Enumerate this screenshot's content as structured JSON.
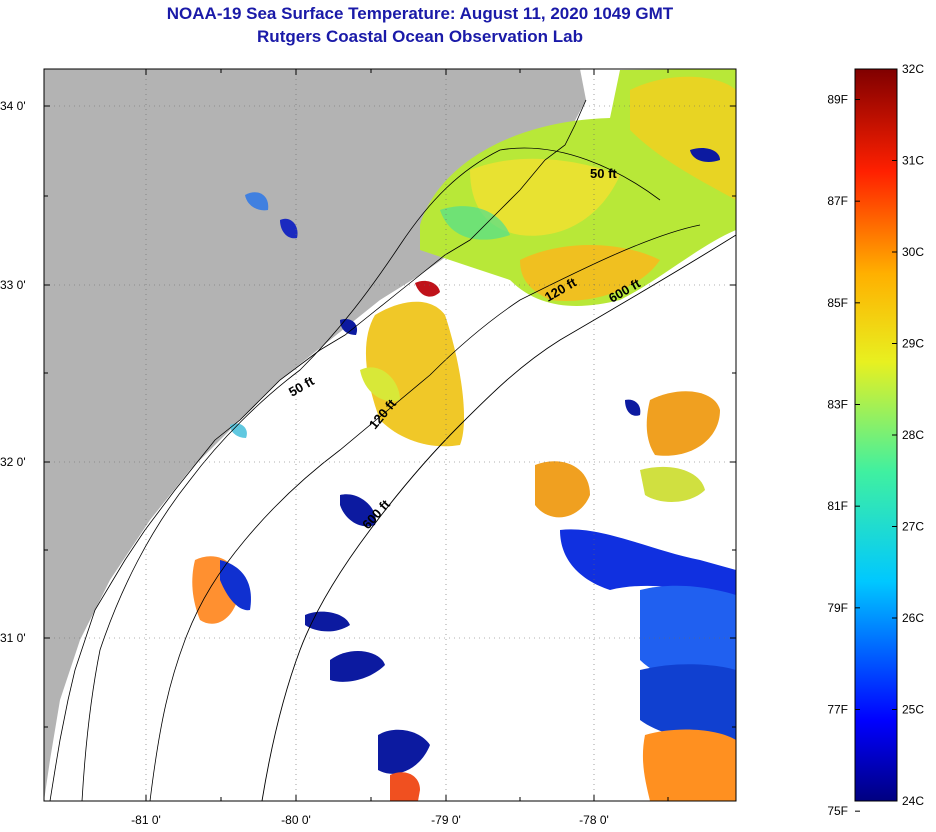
{
  "title_line1": "NOAA-19 Sea Surface Temperature:  August 11, 2020 1049 GMT",
  "title_line2": "Rutgers Coastal Ocean Observation Lab",
  "lat_labels": [
    "34 0'",
    "33 0'",
    "32 0'",
    "31 0'"
  ],
  "lon_labels": [
    "-81 0'",
    "-80 0'",
    "-79 0'",
    "-78 0'"
  ],
  "contour_labels": [
    "50 ft",
    "120 ft",
    "600 ft",
    "50 ft",
    "120 ft",
    "600 ft"
  ],
  "colorbar": {
    "fahrenheit_labels": [
      "89F",
      "87F",
      "85F",
      "83F",
      "81F",
      "79F",
      "77F",
      "75F"
    ],
    "celsius_labels": [
      "32C",
      "31C",
      "30C",
      "29C",
      "28C",
      "27C",
      "26C",
      "25C",
      "24C"
    ],
    "range_c": [
      24,
      32
    ]
  },
  "colors": {
    "land": "#b3b3b3",
    "title": "#1a1aa8",
    "cloud": "#ffffff"
  }
}
